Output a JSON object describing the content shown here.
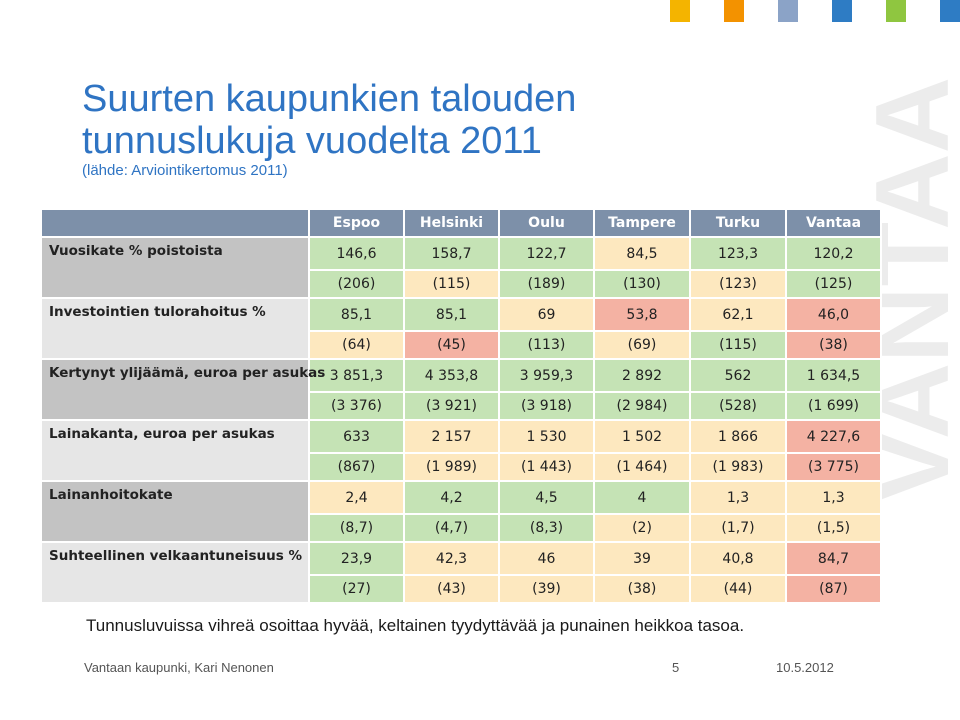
{
  "title_line1": "Suurten kaupunkien talouden",
  "title_line2": "tunnuslukuja vuodelta 2011",
  "source": "(lähde: Arviointikertomus 2011)",
  "brand_watermark": "VANTAA",
  "colors": {
    "title_blue": "#2f74c3",
    "header_bg": "#7d90a9",
    "good_green": "#c5e3b5",
    "ok_yellow": "#fde8bf",
    "weak_red": "#f4b2a3",
    "corner_squares": [
      "#f4b400",
      "#f39200",
      "#8ba3c7",
      "#2e7cc4",
      "#8fc640",
      "#2e7cc4"
    ]
  },
  "table": {
    "columns": [
      "Espoo",
      "Helsinki",
      "Oulu",
      "Tampere",
      "Turku",
      "Vantaa"
    ],
    "rows": [
      {
        "label": "Vuosikate % poistoista",
        "values": [
          "146,6",
          "158,7",
          "122,7",
          "84,5",
          "123,3",
          "120,2"
        ],
        "prev": [
          "(206)",
          "(115)",
          "(189)",
          "(130)",
          "(123)",
          "(125)"
        ]
      },
      {
        "label": "Investointien tulorahoitus %",
        "values": [
          "85,1",
          "85,1",
          "69",
          "53,8",
          "62,1",
          "46,0"
        ],
        "prev": [
          "(64)",
          "(45)",
          "(113)",
          "(69)",
          "(115)",
          "(38)"
        ]
      },
      {
        "label": "Kertynyt ylijäämä, euroa per asukas",
        "values": [
          "3 851,3",
          "4 353,8",
          "3 959,3",
          "2 892",
          "562",
          "1 634,5"
        ],
        "prev": [
          "(3 376)",
          "(3 921)",
          "(3 918)",
          "(2 984)",
          "(528)",
          "(1 699)"
        ]
      },
      {
        "label": "Lainakanta, euroa per asukas",
        "values": [
          "633",
          "2 157",
          "1 530",
          "1 502",
          "1 866",
          "4 227,6"
        ],
        "prev": [
          "(867)",
          "(1 989)",
          "(1 443)",
          "(1 464)",
          "(1 983)",
          "(3 775)"
        ]
      },
      {
        "label": "Lainanhoitokate",
        "values": [
          "2,4",
          "4,2",
          "4,5",
          "4",
          "1,3",
          "1,3"
        ],
        "prev": [
          "(8,7)",
          "(4,7)",
          "(8,3)",
          "(2)",
          "(1,7)",
          "(1,5)"
        ]
      },
      {
        "label": "Suhteellinen velkaantuneisuus %",
        "values": [
          "23,9",
          "42,3",
          "46",
          "39",
          "40,8",
          "84,7"
        ],
        "prev": [
          "(27)",
          "(43)",
          "(39)",
          "(38)",
          "(44)",
          "(87)"
        ]
      }
    ]
  },
  "legend": "Tunnusluvuissa vihreä osoittaa hyvää, keltainen tyydyttävää ja punainen heikkoa tasoa.",
  "footer": {
    "author": "Vantaan kaupunki, Kari Nenonen",
    "page": "5",
    "date": "10.5.2012"
  }
}
